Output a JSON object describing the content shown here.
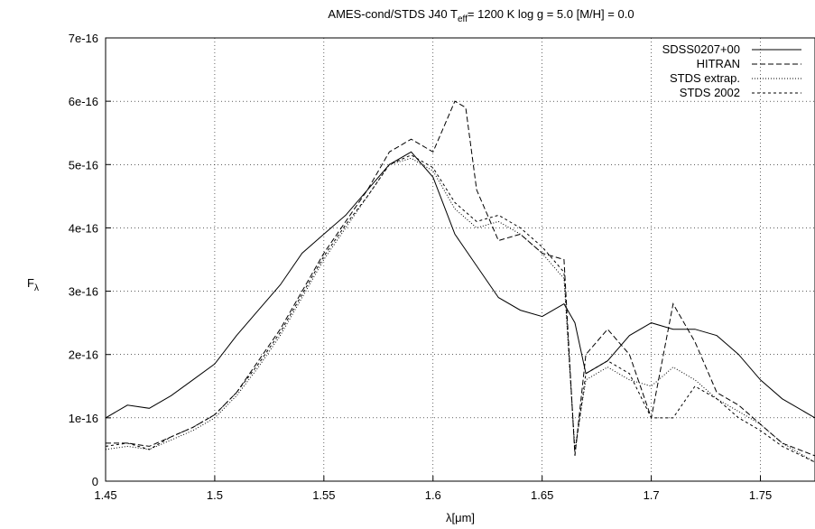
{
  "chart_data": {
    "type": "line",
    "title": "AMES-cond/STDS J40 T",
    "title_sub": "eff",
    "title_rest": "= 1200 K log g = 5.0 [M/H] = 0.0",
    "xlabel": "λ[μm]",
    "ylabel": "F",
    "ylabel_sub": "λ",
    "xlim": [
      1.45,
      1.775
    ],
    "ylim": [
      0,
      7e-16
    ],
    "x_ticks": [
      1.45,
      1.5,
      1.55,
      1.6,
      1.65,
      1.7,
      1.75
    ],
    "x_tick_labels": [
      "1.45",
      "1.5",
      "1.55",
      "1.6",
      "1.65",
      "1.7",
      "1.75"
    ],
    "y_ticks": [
      0,
      1e-16,
      2e-16,
      3e-16,
      4e-16,
      5e-16,
      6e-16,
      7e-16
    ],
    "y_tick_labels": [
      "0",
      "1e-16",
      "2e-16",
      "3e-16",
      "4e-16",
      "5e-16",
      "6e-16",
      "7e-16"
    ],
    "grid": true,
    "legend_position": "top-right",
    "series": [
      {
        "name": "SDSS0207+00",
        "style": "solid",
        "x": [
          1.45,
          1.46,
          1.47,
          1.48,
          1.49,
          1.5,
          1.51,
          1.52,
          1.53,
          1.54,
          1.55,
          1.56,
          1.57,
          1.58,
          1.59,
          1.6,
          1.61,
          1.62,
          1.63,
          1.64,
          1.65,
          1.66,
          1.665,
          1.67,
          1.68,
          1.69,
          1.7,
          1.71,
          1.72,
          1.73,
          1.74,
          1.75,
          1.76,
          1.775
        ],
        "y": [
          1e-16,
          1.2e-16,
          1.15e-16,
          1.35e-16,
          1.6e-16,
          1.85e-16,
          2.3e-16,
          2.7e-16,
          3.1e-16,
          3.6e-16,
          3.9e-16,
          4.2e-16,
          4.6e-16,
          5e-16,
          5.2e-16,
          4.8e-16,
          3.9e-16,
          3.4e-16,
          2.9e-16,
          2.7e-16,
          2.6e-16,
          2.8e-16,
          2.5e-16,
          1.7e-16,
          1.9e-16,
          2.3e-16,
          2.5e-16,
          2.4e-16,
          2.4e-16,
          2.3e-16,
          2e-16,
          1.6e-16,
          1.3e-16,
          1e-16
        ]
      },
      {
        "name": "HITRAN",
        "style": "dashed",
        "x": [
          1.45,
          1.46,
          1.47,
          1.48,
          1.49,
          1.5,
          1.51,
          1.52,
          1.53,
          1.54,
          1.55,
          1.56,
          1.57,
          1.58,
          1.59,
          1.6,
          1.605,
          1.61,
          1.615,
          1.62,
          1.63,
          1.64,
          1.65,
          1.66,
          1.665,
          1.67,
          1.68,
          1.69,
          1.7,
          1.71,
          1.72,
          1.73,
          1.74,
          1.75,
          1.76,
          1.775
        ],
        "y": [
          6e-17,
          6e-17,
          5.5e-17,
          7e-17,
          8.5e-17,
          1.05e-16,
          1.4e-16,
          1.9e-16,
          2.4e-16,
          3e-16,
          3.6e-16,
          4.1e-16,
          4.6e-16,
          5.2e-16,
          5.4e-16,
          5.2e-16,
          5.6e-16,
          6e-16,
          5.9e-16,
          4.6e-16,
          3.8e-16,
          3.9e-16,
          3.6e-16,
          3.5e-16,
          4e-17,
          2e-16,
          2.4e-16,
          2e-16,
          1e-16,
          2.8e-16,
          2.2e-16,
          1.4e-16,
          1.2e-16,
          9e-17,
          6e-17,
          4e-17
        ]
      },
      {
        "name": "STDS extrap.",
        "style": "dotted",
        "x": [
          1.45,
          1.46,
          1.47,
          1.48,
          1.49,
          1.5,
          1.51,
          1.52,
          1.53,
          1.54,
          1.55,
          1.56,
          1.57,
          1.58,
          1.59,
          1.6,
          1.61,
          1.62,
          1.63,
          1.64,
          1.65,
          1.66,
          1.665,
          1.67,
          1.68,
          1.69,
          1.7,
          1.71,
          1.72,
          1.73,
          1.74,
          1.75,
          1.76,
          1.775
        ],
        "y": [
          5e-17,
          5.5e-17,
          5e-17,
          6.5e-17,
          8e-17,
          1e-16,
          1.35e-16,
          1.8e-16,
          2.3e-16,
          2.9e-16,
          3.5e-16,
          4e-16,
          4.5e-16,
          5e-16,
          5.1e-16,
          4.9e-16,
          4.3e-16,
          4e-16,
          4.1e-16,
          3.9e-16,
          3.6e-16,
          3.2e-16,
          5e-17,
          1.6e-16,
          1.8e-16,
          1.6e-16,
          1.5e-16,
          1.8e-16,
          1.6e-16,
          1.3e-16,
          1.1e-16,
          9e-17,
          6e-17,
          3e-17
        ]
      },
      {
        "name": "STDS 2002",
        "style": "short-dashed",
        "x": [
          1.45,
          1.46,
          1.47,
          1.48,
          1.49,
          1.5,
          1.51,
          1.52,
          1.53,
          1.54,
          1.55,
          1.56,
          1.57,
          1.58,
          1.59,
          1.6,
          1.61,
          1.62,
          1.63,
          1.64,
          1.65,
          1.66,
          1.665,
          1.67,
          1.68,
          1.69,
          1.7,
          1.71,
          1.72,
          1.73,
          1.74,
          1.75,
          1.76,
          1.775
        ],
        "y": [
          5.5e-17,
          6e-17,
          5e-17,
          7e-17,
          8.5e-17,
          1.05e-16,
          1.4e-16,
          1.85e-16,
          2.35e-16,
          2.95e-16,
          3.55e-16,
          4.05e-16,
          4.5e-16,
          5e-16,
          5.15e-16,
          4.95e-16,
          4.4e-16,
          4.1e-16,
          4.2e-16,
          4e-16,
          3.7e-16,
          3.3e-16,
          4.5e-17,
          1.7e-16,
          1.9e-16,
          1.7e-16,
          1e-16,
          1e-16,
          1.5e-16,
          1.3e-16,
          1e-16,
          8e-17,
          5.5e-17,
          3e-17
        ]
      }
    ]
  }
}
